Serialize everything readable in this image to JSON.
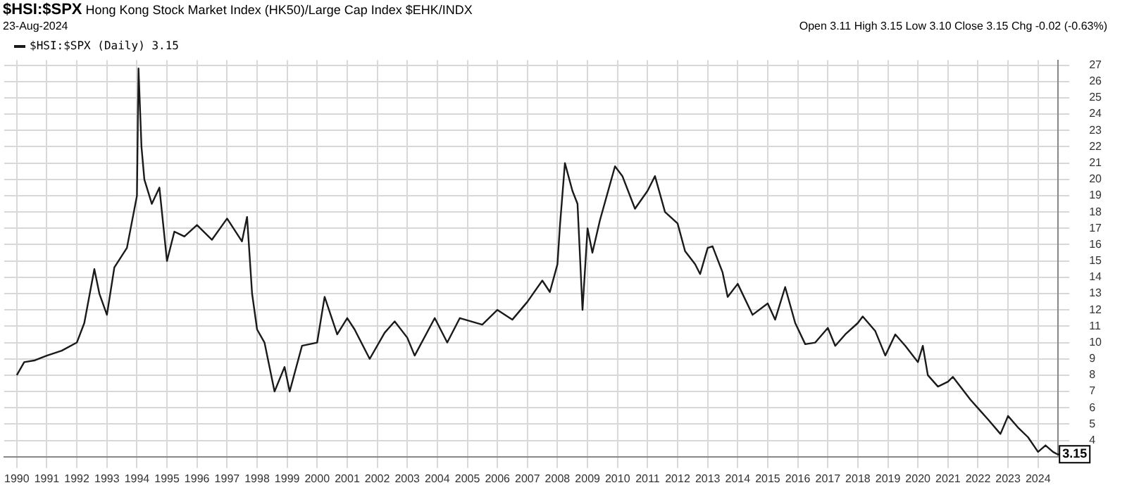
{
  "chart_data": {
    "type": "line",
    "title": "$HSI:$SPX",
    "subtitle": "Hong Kong Stock Market Index (HK50)/Large Cap Index $EHK/INDX",
    "annotations": [
      "23-Aug-2024",
      "Open 3.11 High 3.15 Low 3.10 Close 3.15 Chg -0.02 (-0.63%)",
      {
        "text": "3.15",
        "x": "2024-08-23",
        "y": 3.15
      }
    ],
    "series": [
      {
        "name": "$HSI:$SPX (Daily) 3.15",
        "color": "#1a1a1a",
        "x": [
          "1990-01",
          "1990-04",
          "1990-08",
          "1991-01",
          "1991-07",
          "1992-01",
          "1992-04",
          "1992-08",
          "1992-10",
          "1993-01",
          "1993-04",
          "1993-09",
          "1994-01",
          "1994-01-20",
          "1994-02-25",
          "1994-04",
          "1994-07",
          "1994-10",
          "1995-01",
          "1995-04",
          "1995-08",
          "1996-01",
          "1996-07",
          "1997-01",
          "1997-07",
          "1997-09",
          "1997-11",
          "1998-01",
          "1998-04",
          "1998-08",
          "1998-12",
          "1999-02",
          "1999-07",
          "2000-01",
          "2000-04",
          "2000-09",
          "2001-01",
          "2001-04",
          "2001-10",
          "2002-04",
          "2002-08",
          "2003-01",
          "2003-04",
          "2003-12",
          "2004-05",
          "2004-10",
          "2005-07",
          "2006-01",
          "2006-07",
          "2007-01",
          "2007-07",
          "2007-10",
          "2008-01",
          "2008-02",
          "2008-04",
          "2008-07",
          "2008-09",
          "2008-11",
          "2009-01",
          "2009-03",
          "2009-06",
          "2009-12",
          "2010-03",
          "2010-08",
          "2011-01",
          "2011-04",
          "2011-08",
          "2012-01",
          "2012-04",
          "2012-08",
          "2012-10",
          "2013-01",
          "2013-03",
          "2013-07",
          "2013-09",
          "2014-01",
          "2014-07",
          "2015-01",
          "2015-04",
          "2015-08",
          "2015-12",
          "2016-04",
          "2016-08",
          "2017-01",
          "2017-04",
          "2017-08",
          "2018-01",
          "2018-03",
          "2018-08",
          "2018-12",
          "2019-04",
          "2019-08",
          "2020-01",
          "2020-03",
          "2020-05",
          "2020-09",
          "2021-01",
          "2021-03",
          "2021-07",
          "2021-10",
          "2022-02",
          "2022-05",
          "2022-10",
          "2023-01",
          "2023-05",
          "2023-09",
          "2024-01",
          "2024-04",
          "2024-07",
          "2024-08-23"
        ],
        "values": [
          8.0,
          8.8,
          8.9,
          9.2,
          9.5,
          10.0,
          11.2,
          14.5,
          13.0,
          11.7,
          14.6,
          15.8,
          19.0,
          26.8,
          22.0,
          20.0,
          18.5,
          19.5,
          15.0,
          16.8,
          16.5,
          17.2,
          16.3,
          17.6,
          16.2,
          17.7,
          13.0,
          10.8,
          10.0,
          7.0,
          8.5,
          7.0,
          9.8,
          10.0,
          12.8,
          10.5,
          11.5,
          10.8,
          9.0,
          10.6,
          11.3,
          10.3,
          9.2,
          11.5,
          10.0,
          11.5,
          11.1,
          12.0,
          11.4,
          12.5,
          13.8,
          13.1,
          14.8,
          17.2,
          21.0,
          19.3,
          18.5,
          12.0,
          17.0,
          15.5,
          17.5,
          20.8,
          20.2,
          18.2,
          19.3,
          20.2,
          18.0,
          17.3,
          15.6,
          14.8,
          14.2,
          15.8,
          15.9,
          14.3,
          12.8,
          13.6,
          11.7,
          12.4,
          11.4,
          13.4,
          11.2,
          9.9,
          10.0,
          10.9,
          9.8,
          10.5,
          11.2,
          11.6,
          10.7,
          9.2,
          10.5,
          9.8,
          8.8,
          9.8,
          8.0,
          7.3,
          7.6,
          7.9,
          7.1,
          6.5,
          5.8,
          5.3,
          4.4,
          5.5,
          4.8,
          4.2,
          3.3,
          3.7,
          3.3,
          3.15
        ]
      }
    ],
    "xlim": [
      "1989-08",
      "2024-09"
    ],
    "xticks": [
      "1990",
      "1991",
      "1992",
      "1993",
      "1994",
      "1995",
      "1996",
      "1997",
      "1998",
      "1999",
      "2000",
      "2001",
      "2002",
      "2003",
      "2004",
      "2005",
      "2006",
      "2007",
      "2008",
      "2009",
      "2010",
      "2011",
      "2012",
      "2013",
      "2014",
      "2015",
      "2016",
      "2017",
      "2018",
      "2019",
      "2020",
      "2021",
      "2022",
      "2023",
      "2024"
    ],
    "ylim": [
      3,
      27.3
    ],
    "yticks": [
      4,
      5,
      6,
      7,
      8,
      9,
      10,
      11,
      12,
      13,
      14,
      15,
      16,
      17,
      18,
      19,
      20,
      21,
      22,
      23,
      24,
      25,
      26,
      27
    ],
    "grid": true,
    "legend": "top left",
    "marker": "none",
    "line_style": "solid"
  }
}
